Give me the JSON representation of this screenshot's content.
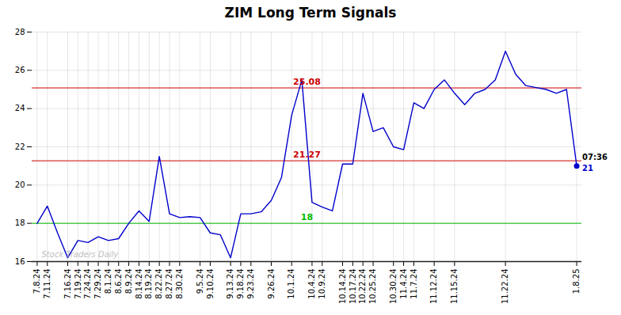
{
  "chart_data": {
    "type": "line",
    "title": "ZIM Long Term Signals",
    "categories": [
      "7.8.24",
      "7.11.24",
      null,
      "7.16.24",
      "7.19.24",
      "7.24.24",
      "7.29.24",
      "8.1.24",
      "8.6.24",
      "8.9.24",
      "8.14.24",
      "8.19.24",
      "8.22.24",
      "8.27.24",
      "8.30.24",
      null,
      "9.5.24",
      "9.10.24",
      null,
      "9.13.24",
      "9.18.24",
      "9.23.24",
      null,
      "9.26.24",
      null,
      "10.1.24",
      null,
      "10.4.24",
      "10.9.24",
      null,
      "10.14.24",
      "10.17.24",
      "10.22.24",
      "10.25.24",
      null,
      "10.30.24",
      "11.4.24",
      "11.7.24",
      null,
      "11.12.24",
      null,
      "11.15.24",
      null,
      null,
      null,
      null,
      "11.22.24",
      null,
      null,
      null,
      null,
      null,
      null,
      "1.8.25"
    ],
    "values": [
      18.0,
      18.9,
      17.5,
      16.2,
      17.1,
      17.0,
      17.3,
      17.1,
      17.2,
      18.0,
      18.65,
      18.1,
      21.5,
      18.5,
      18.3,
      18.35,
      18.3,
      17.5,
      17.4,
      16.2,
      18.5,
      18.5,
      18.6,
      19.2,
      20.4,
      23.65,
      25.5,
      19.1,
      18.85,
      18.65,
      21.1,
      21.1,
      24.8,
      22.8,
      23.0,
      22.0,
      21.85,
      24.3,
      24.0,
      25.0,
      25.5,
      24.8,
      24.2,
      24.8,
      25.0,
      25.5,
      27.0,
      25.8,
      25.2,
      25.1,
      25.0,
      24.8,
      25.0,
      21.0
    ],
    "color": "#0000cc",
    "hlines": [
      {
        "value": 18.0,
        "label": "18",
        "color": "#00bb00"
      },
      {
        "value": 21.27,
        "label": "21.27",
        "color": "#cc0000"
      },
      {
        "value": 25.08,
        "label": "25.08",
        "color": "#cc0000"
      }
    ],
    "annotations": [
      {
        "text": "07:36",
        "color": "#000000"
      },
      {
        "text": "21",
        "color": "#0000cc"
      }
    ],
    "watermark": "Stock Traders Daily",
    "ylim": [
      16,
      28
    ],
    "yticks": [
      16,
      18,
      20,
      22,
      24,
      26,
      28
    ],
    "grid": true
  }
}
